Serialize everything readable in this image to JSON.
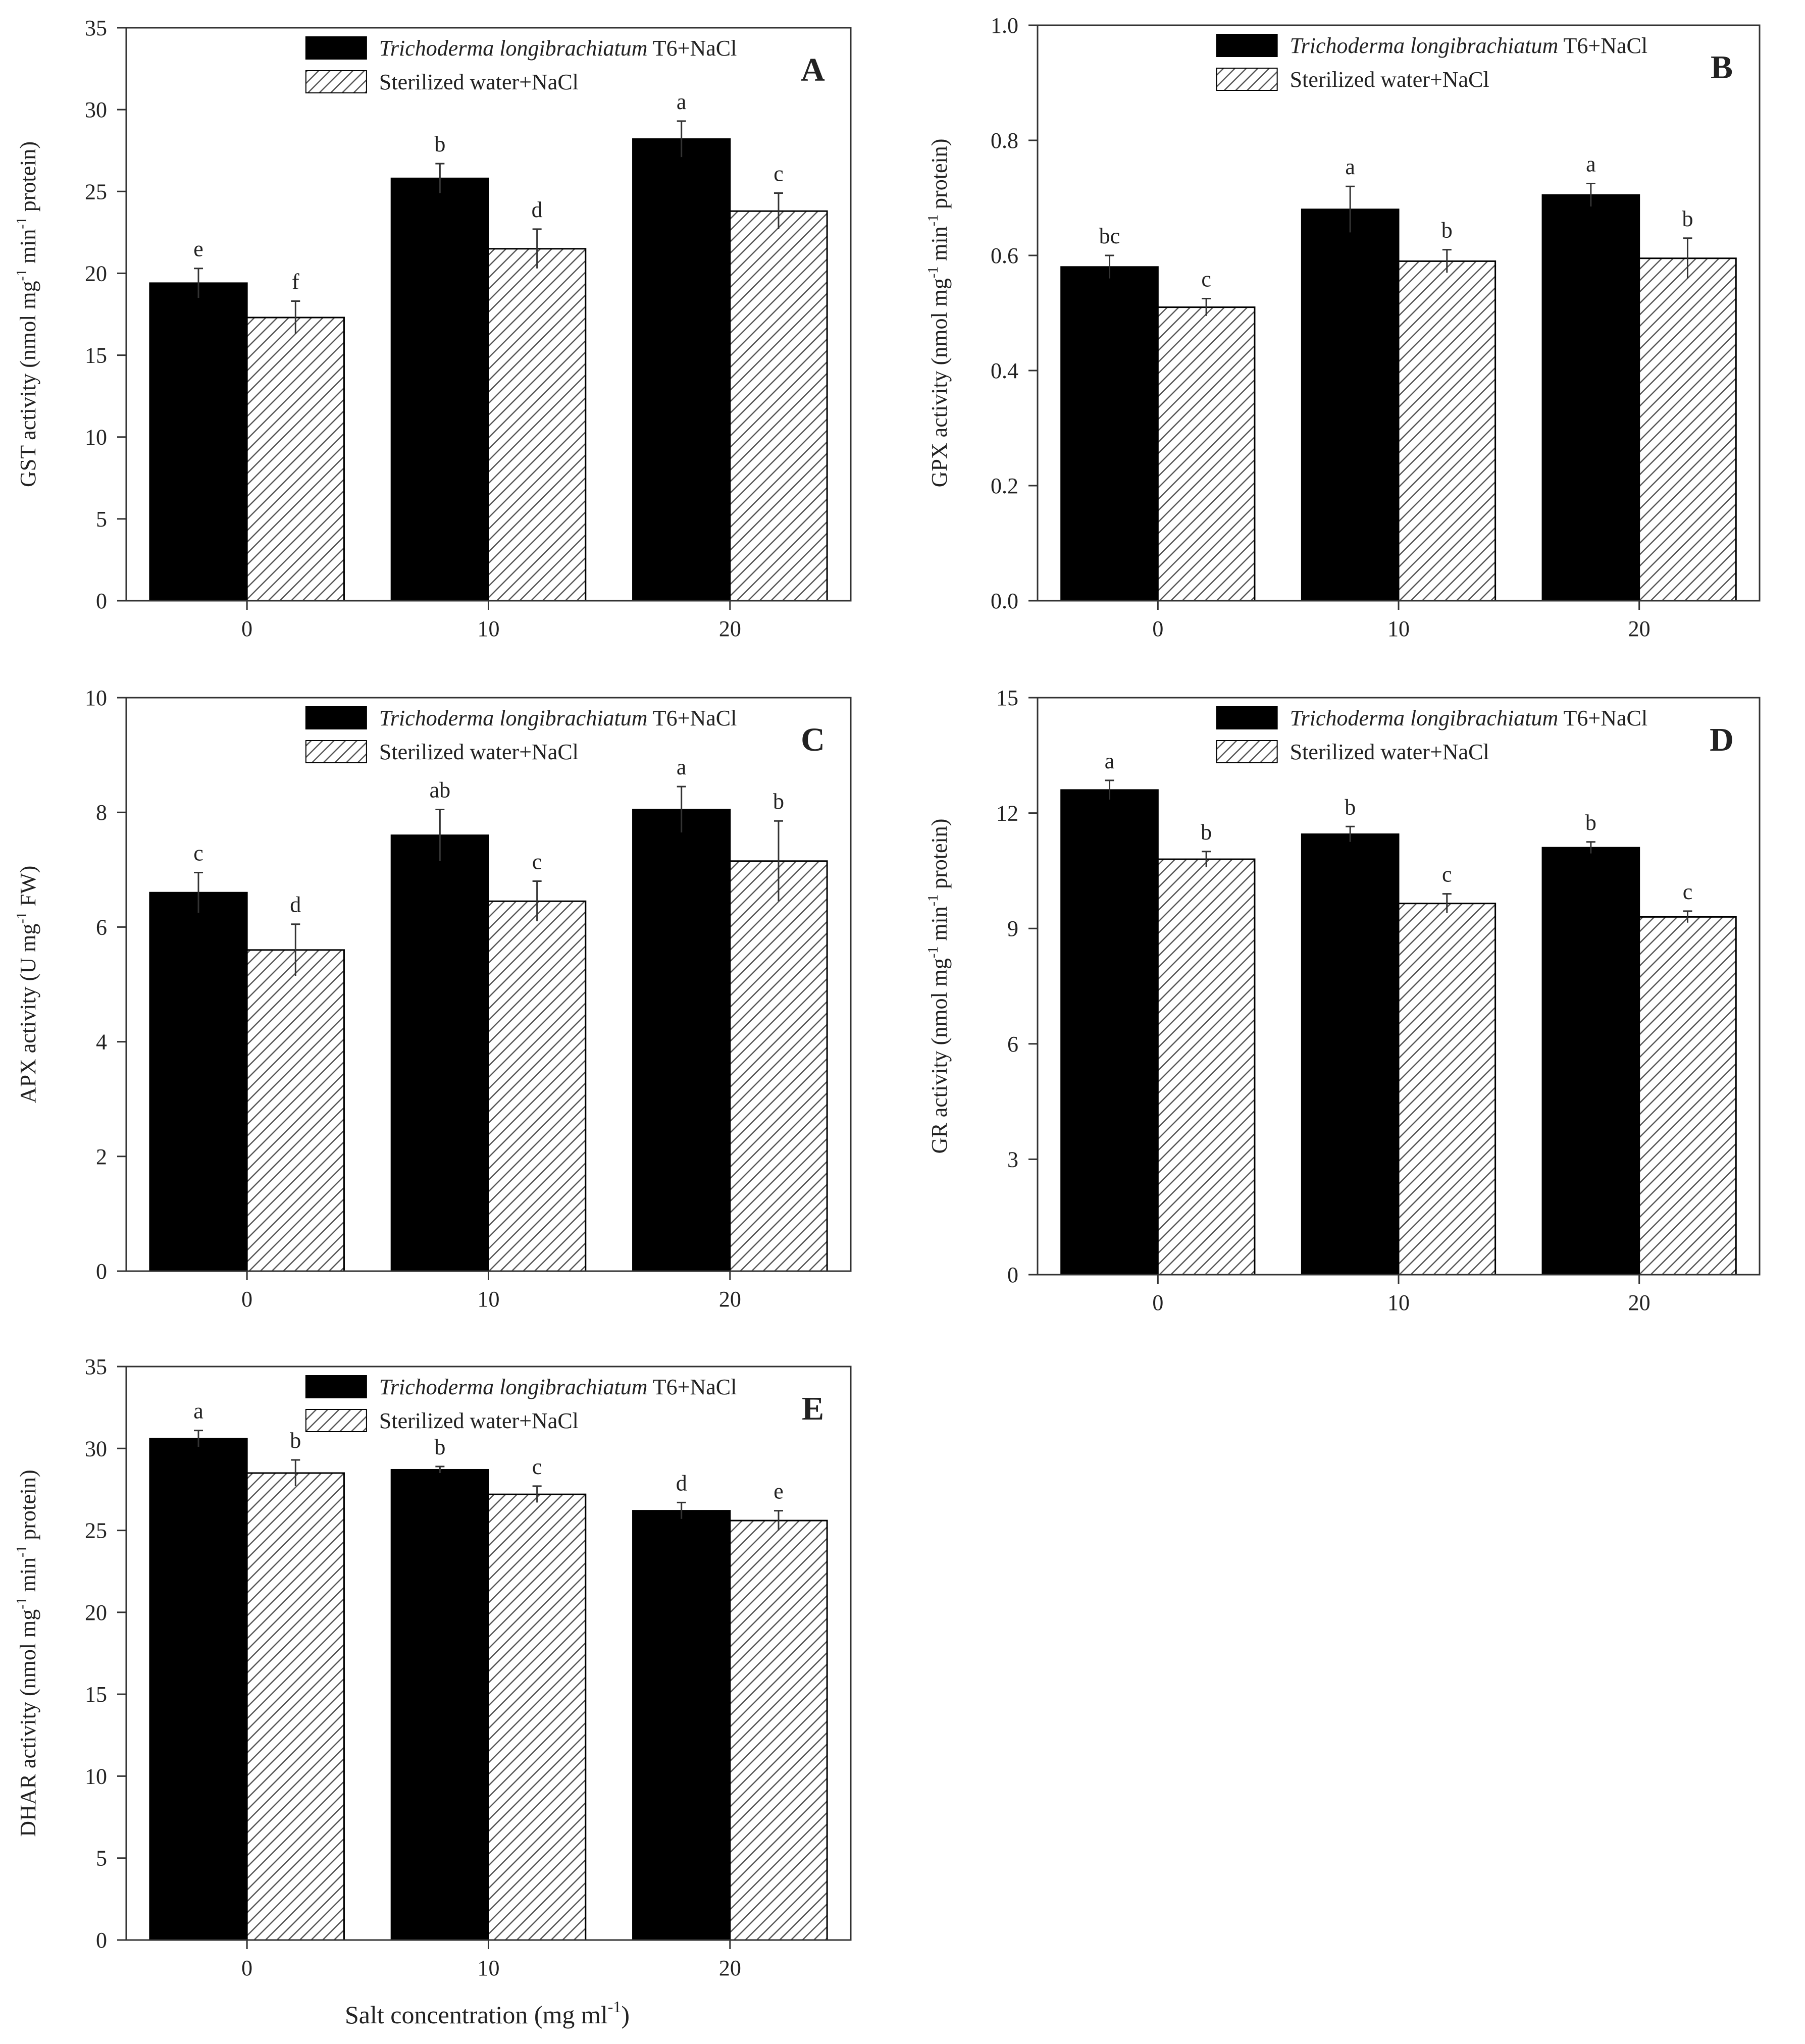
{
  "figure": {
    "x_axis_title": "Salt concentration (mg ml",
    "x_axis_title_sup": "-1",
    "x_axis_title_end": ")"
  },
  "legend": {
    "italic_part": "Trichoderma longibrachiatum",
    "series1_suffix": " T6+NaCl",
    "series2": "Sterilized water+NaCl"
  },
  "colors": {
    "series1": "#000000",
    "series2_hatch": "#555555",
    "axis": "#333333"
  },
  "chart_data": [
    {
      "panel": "A",
      "type": "bar",
      "categories": [
        "0",
        "10",
        "20"
      ],
      "ylim": [
        0,
        35
      ],
      "yticks": [
        0,
        5,
        10,
        15,
        20,
        25,
        30,
        35
      ],
      "tick_decimals": 0,
      "ylabel": [
        {
          "t": "GST activity (nmol mg"
        },
        {
          "t": "-1",
          "sup": true
        },
        {
          "t": " min"
        },
        {
          "t": "-1",
          "sup": true
        },
        {
          "t": " protein)"
        }
      ],
      "series": [
        {
          "name": "Trichoderma longibrachiatum T6+NaCl",
          "values": [
            19.4,
            25.8,
            28.2
          ],
          "errors": [
            0.9,
            0.9,
            1.1
          ],
          "letters": [
            "e",
            "b",
            "a"
          ]
        },
        {
          "name": "Sterilized water+NaCl",
          "values": [
            17.3,
            21.5,
            23.8
          ],
          "errors": [
            1.0,
            1.2,
            1.1
          ],
          "letters": [
            "f",
            "d",
            "c"
          ]
        }
      ]
    },
    {
      "panel": "B",
      "type": "bar",
      "categories": [
        "0",
        "10",
        "20"
      ],
      "ylim": [
        0,
        1.0
      ],
      "yticks": [
        0.0,
        0.2,
        0.4,
        0.6,
        0.8,
        1.0
      ],
      "tick_decimals": 1,
      "ylabel": [
        {
          "t": "GPX activity (nmol mg"
        },
        {
          "t": "-1",
          "sup": true
        },
        {
          "t": " min"
        },
        {
          "t": "-1",
          "sup": true
        },
        {
          "t": " protein)"
        }
      ],
      "series": [
        {
          "name": "Trichoderma longibrachiatum T6+NaCl",
          "values": [
            0.58,
            0.68,
            0.705
          ],
          "errors": [
            0.02,
            0.04,
            0.02
          ],
          "letters": [
            "bc",
            "a",
            "a"
          ]
        },
        {
          "name": "Sterilized water+NaCl",
          "values": [
            0.51,
            0.59,
            0.595
          ],
          "errors": [
            0.015,
            0.02,
            0.035
          ],
          "letters": [
            "c",
            "b",
            "b"
          ]
        }
      ]
    },
    {
      "panel": "C",
      "type": "bar",
      "categories": [
        "0",
        "10",
        "20"
      ],
      "ylim": [
        0,
        10
      ],
      "yticks": [
        0,
        2,
        4,
        6,
        8,
        10
      ],
      "tick_decimals": 0,
      "ylabel": [
        {
          "t": "APX activity (U mg"
        },
        {
          "t": "-1",
          "sup": true
        },
        {
          "t": " FW)"
        }
      ],
      "series": [
        {
          "name": "Trichoderma longibrachiatum T6+NaCl",
          "values": [
            6.6,
            7.6,
            8.05
          ],
          "errors": [
            0.35,
            0.45,
            0.4
          ],
          "letters": [
            "c",
            "ab",
            "a"
          ]
        },
        {
          "name": "Sterilized water+NaCl",
          "values": [
            5.6,
            6.45,
            7.15
          ],
          "errors": [
            0.45,
            0.35,
            0.7
          ],
          "letters": [
            "d",
            "c",
            "b"
          ]
        }
      ]
    },
    {
      "panel": "D",
      "type": "bar",
      "categories": [
        "0",
        "10",
        "20"
      ],
      "ylim": [
        0,
        15
      ],
      "yticks": [
        0,
        3,
        6,
        9,
        12,
        15
      ],
      "tick_decimals": 0,
      "ylabel": [
        {
          "t": "GR activity  (nmol mg"
        },
        {
          "t": "-1",
          "sup": true
        },
        {
          "t": " min"
        },
        {
          "t": "-1",
          "sup": true
        },
        {
          "t": " protein)"
        }
      ],
      "series": [
        {
          "name": "Trichoderma longibrachiatum T6+NaCl",
          "values": [
            12.6,
            11.45,
            11.1
          ],
          "errors": [
            0.25,
            0.2,
            0.15
          ],
          "letters": [
            "a",
            "b",
            "b"
          ]
        },
        {
          "name": "Sterilized water+NaCl",
          "values": [
            10.8,
            9.65,
            9.3
          ],
          "errors": [
            0.2,
            0.25,
            0.15
          ],
          "letters": [
            "b",
            "c",
            "c"
          ]
        }
      ]
    },
    {
      "panel": "E",
      "type": "bar",
      "categories": [
        "0",
        "10",
        "20"
      ],
      "ylim": [
        0,
        35
      ],
      "yticks": [
        0,
        5,
        10,
        15,
        20,
        25,
        30,
        35
      ],
      "tick_decimals": 0,
      "ylabel": [
        {
          "t": "DHAR activity (nmol mg"
        },
        {
          "t": "-1",
          "sup": true
        },
        {
          "t": " min"
        },
        {
          "t": "-1",
          "sup": true
        },
        {
          "t": " protein)"
        }
      ],
      "series": [
        {
          "name": "Trichoderma longibrachiatum T6+NaCl",
          "values": [
            30.6,
            28.7,
            26.2
          ],
          "errors": [
            0.5,
            0.2,
            0.5
          ],
          "letters": [
            "a",
            "b",
            "d"
          ]
        },
        {
          "name": "Sterilized water+NaCl",
          "values": [
            28.5,
            27.2,
            25.6
          ],
          "errors": [
            0.8,
            0.5,
            0.6
          ],
          "letters": [
            "b",
            "c",
            "e"
          ]
        }
      ]
    }
  ]
}
